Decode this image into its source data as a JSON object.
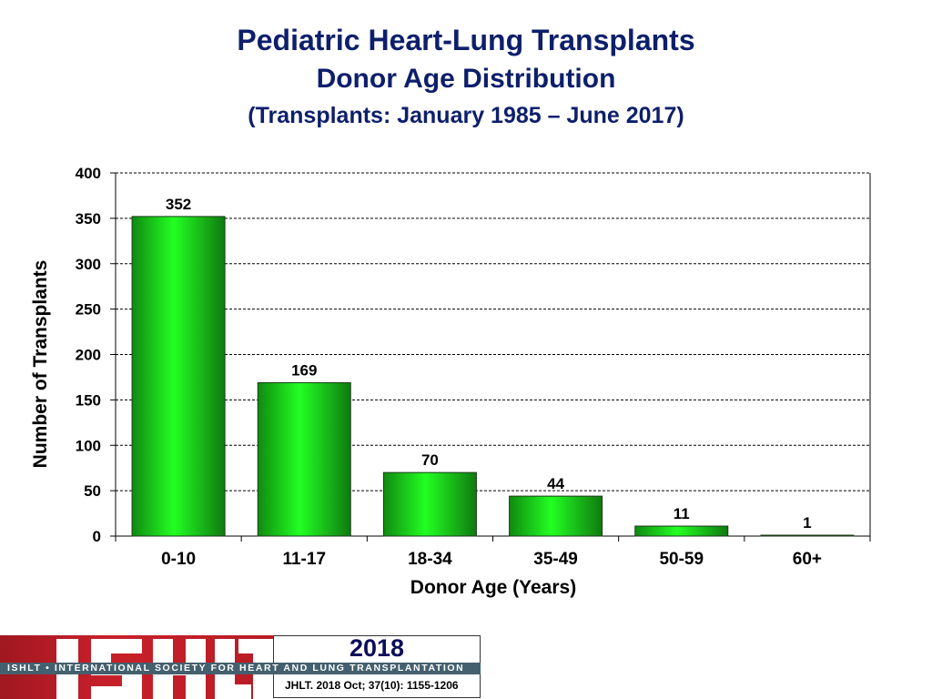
{
  "chart_data": {
    "type": "bar",
    "title": "Pediatric Heart-Lung Transplants",
    "subtitle": "Donor Age Distribution",
    "subtitle2": "(Transplants: January 1985 – June 2017)",
    "xlabel": "Donor  Age (Years)",
    "ylabel": "Number of Transplants",
    "categories": [
      "0-10",
      "11-17",
      "18-34",
      "35-49",
      "50-59",
      "60+"
    ],
    "values": [
      352,
      169,
      70,
      44,
      11,
      1
    ],
    "ylim": [
      0,
      400
    ],
    "yticks": [
      0,
      50,
      100,
      150,
      200,
      250,
      300,
      350,
      400
    ],
    "grid": true,
    "bar_color": "#1ee01e"
  },
  "footer": {
    "logo_text": "ISHLT",
    "band_text": "ISHLT • INTERNATIONAL SOCIETY FOR HEART AND LUNG TRANSPLANTATION",
    "year": "2018",
    "citation": "JHLT. 2018 Oct; 37(10): 1155-1206"
  }
}
